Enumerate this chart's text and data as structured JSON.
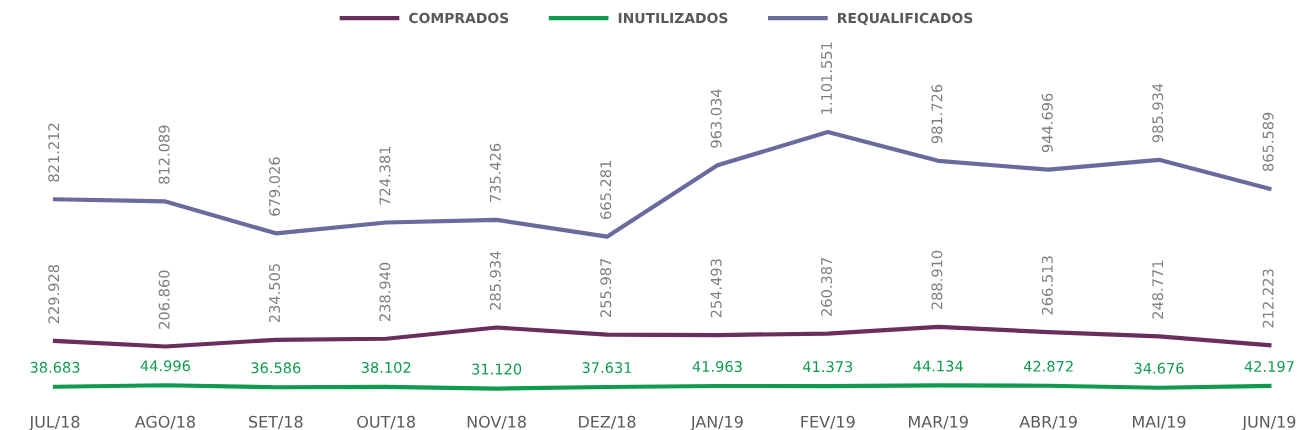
{
  "chart_data": {
    "type": "line",
    "categories": [
      "JUL/18",
      "AGO/18",
      "SET/18",
      "OUT/18",
      "NOV/18",
      "DEZ/18",
      "JAN/19",
      "FEV/19",
      "MAR/19",
      "ABR/19",
      "MAI/19",
      "JUN/19"
    ],
    "series": [
      {
        "name": "COMPRADOS",
        "color": "#6b2d5c",
        "values": [
          229928,
          206860,
          234505,
          238940,
          285934,
          255987,
          254493,
          260387,
          288910,
          266513,
          248771,
          212223
        ],
        "value_labels": [
          "229.928",
          "206.860",
          "234.505",
          "238.940",
          "285.934",
          "255.987",
          "254.493",
          "260.387",
          "288.910",
          "266.513",
          "248.771",
          "212.223"
        ]
      },
      {
        "name": "INUTILIZADOS",
        "color": "#0f9a4e",
        "values": [
          38683,
          44996,
          36586,
          38102,
          31120,
          37631,
          41963,
          41373,
          44134,
          42872,
          34676,
          42197
        ],
        "value_labels": [
          "38.683",
          "44.996",
          "36.586",
          "38.102",
          "31.120",
          "37.631",
          "41.963",
          "41.373",
          "44.134",
          "42.872",
          "34.676",
          "42.197"
        ]
      },
      {
        "name": "REQUALIFICADOS",
        "color": "#6a6a9e",
        "values": [
          821212,
          812089,
          679026,
          724381,
          735426,
          665281,
          963034,
          1101551,
          981726,
          944696,
          985934,
          865589
        ],
        "value_labels": [
          "821.212",
          "812.089",
          "679.026",
          "724.381",
          "735.426",
          "665.281",
          "963.034",
          "1.101.551",
          "981.726",
          "944.696",
          "985.934",
          "865.589"
        ]
      }
    ],
    "legend": "top",
    "grid": false,
    "marker": "none",
    "line_style": "solid"
  }
}
